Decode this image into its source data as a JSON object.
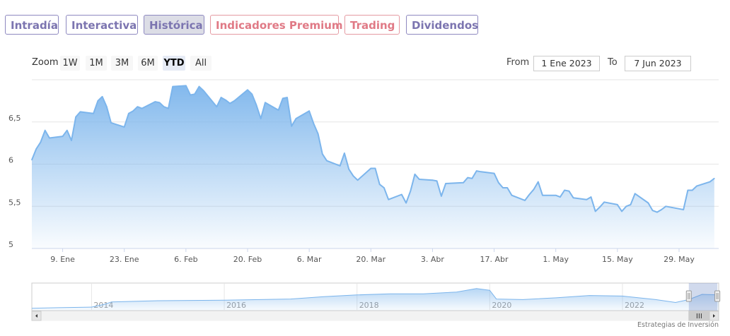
{
  "tabs": [
    {
      "label": "Intradía",
      "color": "purple"
    },
    {
      "label": "Interactiva",
      "color": "purple"
    },
    {
      "label": "Histórica",
      "color": "purple",
      "active": true
    },
    {
      "label": "Indicadores Premium",
      "color": "pink"
    },
    {
      "label": "Trading",
      "color": "pink"
    },
    {
      "label": "Dividendos",
      "color": "purple"
    }
  ],
  "zoom": {
    "label": "Zoom",
    "buttons": [
      "1W",
      "1M",
      "3M",
      "6M",
      "YTD",
      "All"
    ],
    "selected": "YTD"
  },
  "range": {
    "from_label": "From",
    "from_value": "1 Ene 2023",
    "to_label": "To",
    "to_value": "7 Jun 2023"
  },
  "credit": "Estrategias de Inversión",
  "colors": {
    "line": "#7cb5ec",
    "fill_top": "#7cb5ec",
    "tab_purple": "#7c75b0",
    "tab_pink": "#e07a86"
  },
  "chart_data": {
    "type": "area",
    "ylim": [
      5,
      7
    ],
    "y_ticks": [
      5,
      5.5,
      6,
      6.5
    ],
    "y_tick_labels": [
      "5",
      "5,5",
      "6",
      "6,5"
    ],
    "x_range": [
      "2023-01-02",
      "2023-06-07"
    ],
    "x_ticks": [
      {
        "date": "2023-01-09",
        "label": "9. Ene"
      },
      {
        "date": "2023-01-23",
        "label": "23. Ene"
      },
      {
        "date": "2023-02-06",
        "label": "6. Feb"
      },
      {
        "date": "2023-02-20",
        "label": "20. Feb"
      },
      {
        "date": "2023-03-06",
        "label": "6. Mar"
      },
      {
        "date": "2023-03-20",
        "label": "20. Mar"
      },
      {
        "date": "2023-04-03",
        "label": "3. Abr"
      },
      {
        "date": "2023-04-17",
        "label": "17. Abr"
      },
      {
        "date": "2023-05-01",
        "label": "1. May"
      },
      {
        "date": "2023-05-15",
        "label": "15. May"
      },
      {
        "date": "2023-05-29",
        "label": "29. May"
      }
    ],
    "points": [
      [
        "2023-01-02",
        6.05
      ],
      [
        "2023-01-03",
        6.18
      ],
      [
        "2023-01-04",
        6.26
      ],
      [
        "2023-01-05",
        6.4
      ],
      [
        "2023-01-06",
        6.31
      ],
      [
        "2023-01-09",
        6.33
      ],
      [
        "2023-01-10",
        6.4
      ],
      [
        "2023-01-11",
        6.28
      ],
      [
        "2023-01-12",
        6.56
      ],
      [
        "2023-01-13",
        6.62
      ],
      [
        "2023-01-16",
        6.6
      ],
      [
        "2023-01-17",
        6.75
      ],
      [
        "2023-01-18",
        6.8
      ],
      [
        "2023-01-19",
        6.68
      ],
      [
        "2023-01-20",
        6.49
      ],
      [
        "2023-01-23",
        6.44
      ],
      [
        "2023-01-24",
        6.6
      ],
      [
        "2023-01-25",
        6.63
      ],
      [
        "2023-01-26",
        6.68
      ],
      [
        "2023-01-27",
        6.66
      ],
      [
        "2023-01-30",
        6.74
      ],
      [
        "2023-01-31",
        6.73
      ],
      [
        "2023-02-01",
        6.68
      ],
      [
        "2023-02-02",
        6.66
      ],
      [
        "2023-02-03",
        6.92
      ],
      [
        "2023-02-06",
        6.93
      ],
      [
        "2023-02-07",
        6.82
      ],
      [
        "2023-02-08",
        6.83
      ],
      [
        "2023-02-09",
        6.92
      ],
      [
        "2023-02-10",
        6.87
      ],
      [
        "2023-02-13",
        6.68
      ],
      [
        "2023-02-14",
        6.79
      ],
      [
        "2023-02-15",
        6.76
      ],
      [
        "2023-02-16",
        6.72
      ],
      [
        "2023-02-17",
        6.75
      ],
      [
        "2023-02-20",
        6.88
      ],
      [
        "2023-02-21",
        6.83
      ],
      [
        "2023-02-22",
        6.7
      ],
      [
        "2023-02-23",
        6.54
      ],
      [
        "2023-02-24",
        6.73
      ],
      [
        "2023-02-27",
        6.64
      ],
      [
        "2023-02-28",
        6.78
      ],
      [
        "2023-03-01",
        6.79
      ],
      [
        "2023-03-02",
        6.45
      ],
      [
        "2023-03-03",
        6.54
      ],
      [
        "2023-03-06",
        6.63
      ],
      [
        "2023-03-07",
        6.48
      ],
      [
        "2023-03-08",
        6.36
      ],
      [
        "2023-03-09",
        6.12
      ],
      [
        "2023-03-10",
        6.04
      ],
      [
        "2023-03-13",
        5.98
      ],
      [
        "2023-03-14",
        6.13
      ],
      [
        "2023-03-15",
        5.94
      ],
      [
        "2023-03-16",
        5.86
      ],
      [
        "2023-03-17",
        5.81
      ],
      [
        "2023-03-20",
        5.95
      ],
      [
        "2023-03-21",
        5.95
      ],
      [
        "2023-03-22",
        5.76
      ],
      [
        "2023-03-23",
        5.72
      ],
      [
        "2023-03-24",
        5.58
      ],
      [
        "2023-03-27",
        5.64
      ],
      [
        "2023-03-28",
        5.54
      ],
      [
        "2023-03-29",
        5.68
      ],
      [
        "2023-03-30",
        5.88
      ],
      [
        "2023-03-31",
        5.82
      ],
      [
        "2023-04-03",
        5.81
      ],
      [
        "2023-04-04",
        5.8
      ],
      [
        "2023-04-05",
        5.62
      ],
      [
        "2023-04-06",
        5.77
      ],
      [
        "2023-04-10",
        5.78
      ],
      [
        "2023-04-11",
        5.84
      ],
      [
        "2023-04-12",
        5.83
      ],
      [
        "2023-04-13",
        5.92
      ],
      [
        "2023-04-14",
        5.91
      ],
      [
        "2023-04-17",
        5.89
      ],
      [
        "2023-04-18",
        5.78
      ],
      [
        "2023-04-19",
        5.72
      ],
      [
        "2023-04-20",
        5.72
      ],
      [
        "2023-04-21",
        5.63
      ],
      [
        "2023-04-24",
        5.57
      ],
      [
        "2023-04-25",
        5.64
      ],
      [
        "2023-04-26",
        5.7
      ],
      [
        "2023-04-27",
        5.79
      ],
      [
        "2023-04-28",
        5.63
      ],
      [
        "2023-05-01",
        5.63
      ],
      [
        "2023-05-02",
        5.61
      ],
      [
        "2023-05-03",
        5.69
      ],
      [
        "2023-05-04",
        5.68
      ],
      [
        "2023-05-05",
        5.6
      ],
      [
        "2023-05-08",
        5.58
      ],
      [
        "2023-05-09",
        5.61
      ],
      [
        "2023-05-10",
        5.44
      ],
      [
        "2023-05-11",
        5.49
      ],
      [
        "2023-05-12",
        5.55
      ],
      [
        "2023-05-15",
        5.52
      ],
      [
        "2023-05-16",
        5.44
      ],
      [
        "2023-05-17",
        5.5
      ],
      [
        "2023-05-18",
        5.52
      ],
      [
        "2023-05-19",
        5.65
      ],
      [
        "2023-05-22",
        5.54
      ],
      [
        "2023-05-23",
        5.45
      ],
      [
        "2023-05-24",
        5.43
      ],
      [
        "2023-05-25",
        5.46
      ],
      [
        "2023-05-26",
        5.5
      ],
      [
        "2023-05-29",
        5.47
      ],
      [
        "2023-05-30",
        5.46
      ],
      [
        "2023-05-31",
        5.69
      ],
      [
        "2023-06-01",
        5.69
      ],
      [
        "2023-06-02",
        5.74
      ],
      [
        "2023-06-05",
        5.79
      ],
      [
        "2023-06-06",
        5.83
      ]
    ],
    "navigator": {
      "x_range_years": [
        2013.1,
        2023.45
      ],
      "year_labels": [
        "2014",
        "2016",
        "2018",
        "2020",
        "2022"
      ],
      "selected_range": [
        "2023-01-01",
        "2023-06-07"
      ],
      "points": [
        [
          2013.1,
          2.9
        ],
        [
          2013.5,
          3.0
        ],
        [
          2014.0,
          3.1
        ],
        [
          2014.2,
          3.6
        ],
        [
          2014.3,
          4.0
        ],
        [
          2015.0,
          4.2
        ],
        [
          2016.0,
          4.3
        ],
        [
          2017.0,
          4.5
        ],
        [
          2017.5,
          4.9
        ],
        [
          2018.0,
          5.2
        ],
        [
          2018.5,
          5.4
        ],
        [
          2019.0,
          5.4
        ],
        [
          2019.5,
          5.7
        ],
        [
          2019.8,
          6.3
        ],
        [
          2020.0,
          6.0
        ],
        [
          2020.1,
          4.5
        ],
        [
          2020.5,
          4.4
        ],
        [
          2021.0,
          4.7
        ],
        [
          2021.5,
          5.1
        ],
        [
          2022.0,
          5.0
        ],
        [
          2022.5,
          4.4
        ],
        [
          2022.8,
          3.9
        ],
        [
          2023.0,
          4.4
        ],
        [
          2023.2,
          5.3
        ],
        [
          2023.45,
          5.2
        ]
      ]
    }
  }
}
